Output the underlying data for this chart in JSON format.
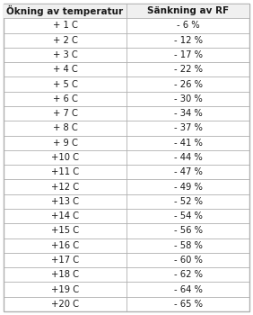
{
  "col1_header": "Ökning av temperatur",
  "col2_header": "Sänkning av RF",
  "rows": [
    [
      "+ 1 C",
      "- 6 %"
    ],
    [
      "+ 2 C",
      "- 12 %"
    ],
    [
      "+ 3 C",
      "- 17 %"
    ],
    [
      "+ 4 C",
      "- 22 %"
    ],
    [
      "+ 5 C",
      "- 26 %"
    ],
    [
      "+ 6 C",
      "- 30 %"
    ],
    [
      "+ 7 C",
      "- 34 %"
    ],
    [
      "+ 8 C",
      "- 37 %"
    ],
    [
      "+ 9 C",
      "- 41 %"
    ],
    [
      "+10 C",
      "- 44 %"
    ],
    [
      "+11 C",
      "- 47 %"
    ],
    [
      "+12 C",
      "- 49 %"
    ],
    [
      "+13 C",
      "- 52 %"
    ],
    [
      "+14 C",
      "- 54 %"
    ],
    [
      "+15 C",
      "- 56 %"
    ],
    [
      "+16 C",
      "- 58 %"
    ],
    [
      "+17 C",
      "- 60 %"
    ],
    [
      "+18 C",
      "- 62 %"
    ],
    [
      "+19 C",
      "- 64 %"
    ],
    [
      "+20 C",
      "- 65 %"
    ]
  ],
  "bg_color": "#ffffff",
  "header_bg": "#f0f0f0",
  "border_color": "#b0b0b0",
  "text_color": "#1a1a1a",
  "font_size": 7.2,
  "header_font_size": 7.5,
  "fig_width": 2.82,
  "fig_height": 3.5,
  "dpi": 100
}
